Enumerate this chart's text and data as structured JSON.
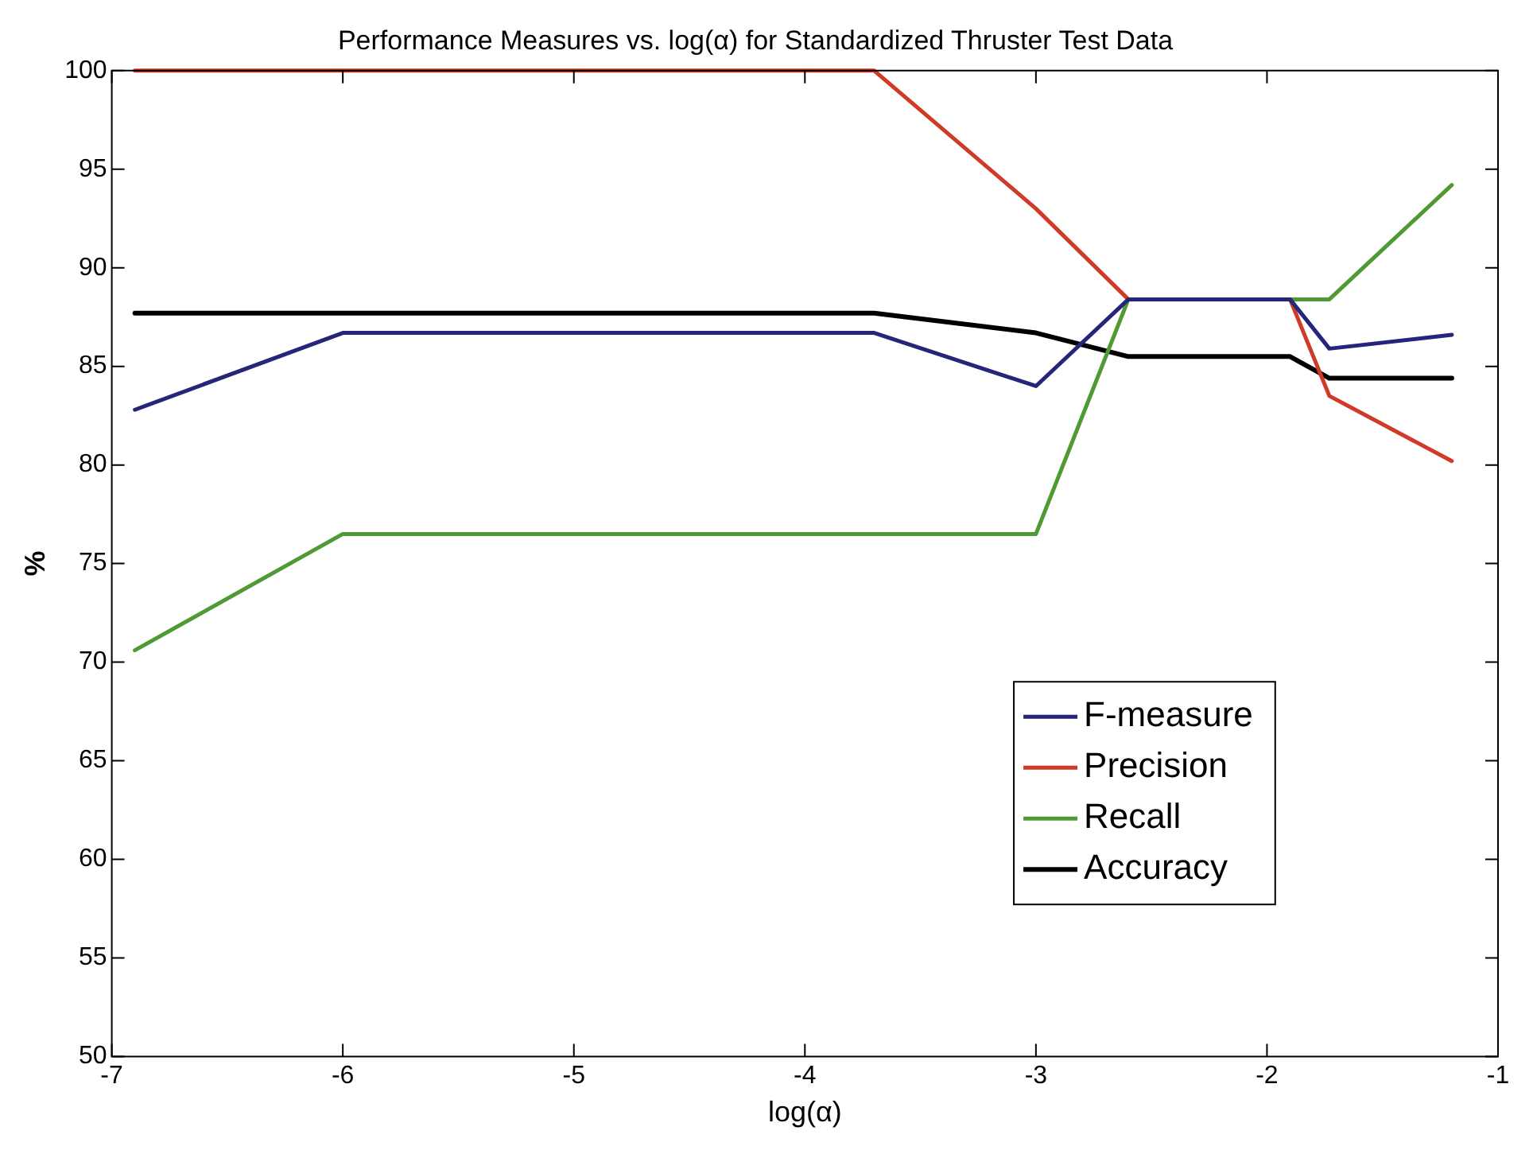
{
  "chart_data": {
    "type": "line",
    "title": "Performance Measures vs. log(α) for Standardized Thruster Test Data",
    "xlabel": "log(α)",
    "ylabel": "%",
    "xlim": [
      -7,
      -1
    ],
    "xticks": [
      -7,
      -6,
      -5,
      -4,
      -3,
      -2,
      -1
    ],
    "ylim": [
      50,
      100
    ],
    "yticks": [
      50,
      55,
      60,
      65,
      70,
      75,
      80,
      85,
      90,
      95,
      100
    ],
    "x": [
      -6.9,
      -6,
      -3.7,
      -3,
      -2.6,
      -1.9,
      -1.73,
      -1.2
    ],
    "series": [
      {
        "name": "F-measure",
        "color": "#25257a",
        "values": [
          82.8,
          86.7,
          86.7,
          84.0,
          88.4,
          88.4,
          85.9,
          86.6
        ]
      },
      {
        "name": "Precision",
        "color": "#d03a28",
        "values": [
          100,
          100,
          100,
          93.0,
          88.4,
          88.4,
          83.5,
          80.2
        ]
      },
      {
        "name": "Recall",
        "color": "#4f9a35",
        "values": [
          70.6,
          76.5,
          76.5,
          76.5,
          88.4,
          88.4,
          88.4,
          94.2
        ]
      },
      {
        "name": "Accuracy",
        "color": "#000000",
        "values": [
          87.7,
          87.7,
          87.7,
          86.7,
          85.5,
          85.5,
          84.4,
          84.4
        ]
      }
    ],
    "grid": false,
    "legend": "bottom right",
    "marker": "none",
    "line_style": "solid"
  }
}
